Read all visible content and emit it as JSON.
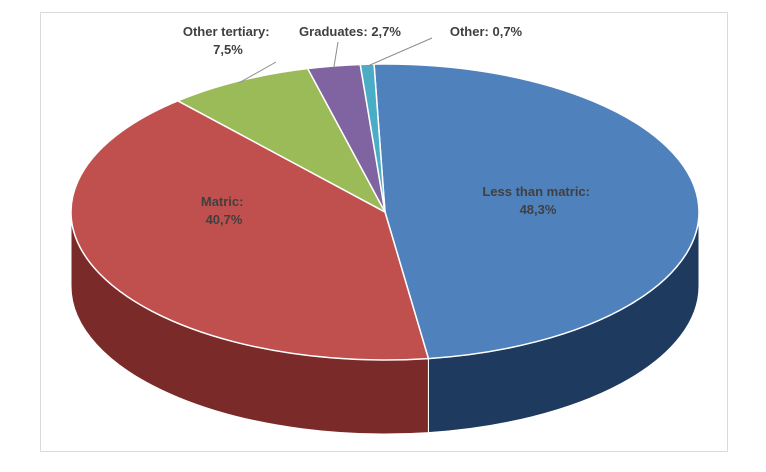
{
  "chart_data": {
    "type": "pie",
    "title": "",
    "style": "3d",
    "legend": "none",
    "slices": [
      {
        "label": "Less than matric",
        "value": 48.3,
        "display": "48,3%",
        "color": "#4f81bd",
        "side_color": "#1f3a5f"
      },
      {
        "label": "Matric",
        "value": 40.7,
        "display": "40,7%",
        "color": "#c0504d",
        "side_color": "#7a2a28"
      },
      {
        "label": "Other tertiary",
        "value": 7.5,
        "display": "7,5%",
        "color": "#9bbb59",
        "side_color": "#5f7a30"
      },
      {
        "label": "Graduates",
        "value": 2.7,
        "display": "2,7%",
        "color": "#8064a2",
        "side_color": "#4b3466"
      },
      {
        "label": "Other",
        "value": 0.7,
        "display": "0,7%",
        "color": "#4bacc6",
        "side_color": "#22687a"
      }
    ]
  }
}
